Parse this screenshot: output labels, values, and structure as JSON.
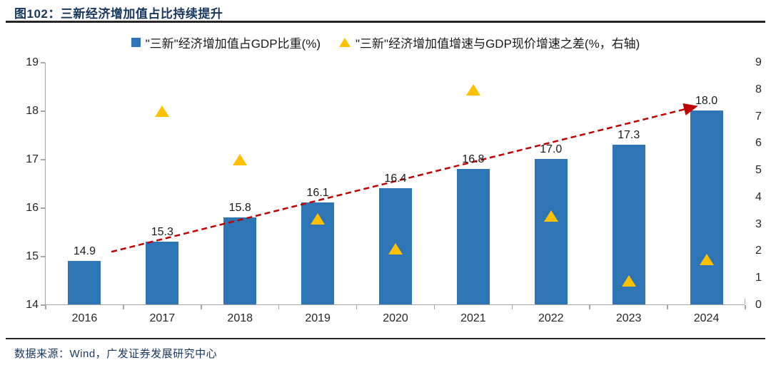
{
  "header": {
    "title": "图102：三新经济增加值占比持续提升"
  },
  "footer": {
    "source": "数据来源：Wind，广发证券发展研究中心"
  },
  "colors": {
    "bar_blue": "#2E75B6",
    "triangle_gold": "#FFC000",
    "arrow_red": "#C00000",
    "title_navy": "#17375E",
    "axis_grey": "#A6A6A6"
  },
  "chart_data": {
    "type": "bar",
    "categories": [
      "2016",
      "2017",
      "2018",
      "2019",
      "2020",
      "2021",
      "2022",
      "2023",
      "2024"
    ],
    "series": [
      {
        "name": "\"三新\"经济增加值占GDP比重(%)",
        "type": "bar",
        "axis": "left",
        "color": "#2E75B6",
        "values": [
          14.9,
          15.3,
          15.8,
          16.1,
          16.4,
          16.8,
          17.0,
          17.3,
          18.0
        ],
        "labels": [
          "14.9",
          "15.3",
          "15.8",
          "16.1",
          "16.4",
          "16.8",
          "17.0",
          "17.3",
          "18.0"
        ]
      },
      {
        "name": "\"三新\"经济增加值增速与GDP现价增速之差(%，右轴)",
        "type": "scatter_triangle",
        "axis": "right",
        "color": "#FFC000",
        "values": [
          null,
          7.2,
          5.4,
          3.2,
          2.1,
          8.0,
          3.3,
          0.9,
          1.7
        ]
      }
    ],
    "left_axis": {
      "min": 14,
      "max": 19,
      "ticks": [
        "14",
        "15",
        "16",
        "17",
        "18",
        "19"
      ]
    },
    "right_axis": {
      "min": 0,
      "max": 9,
      "ticks": [
        "0",
        "1",
        "2",
        "3",
        "4",
        "5",
        "6",
        "7",
        "8",
        "9"
      ]
    },
    "grid": false,
    "legend_position": "top-center",
    "annotation_arrow": {
      "color": "#C00000",
      "style": "dashed",
      "x1_frac": 0.094,
      "y1_value": 15.1,
      "x2_frac": 0.93,
      "y2_value": 18.1
    }
  }
}
